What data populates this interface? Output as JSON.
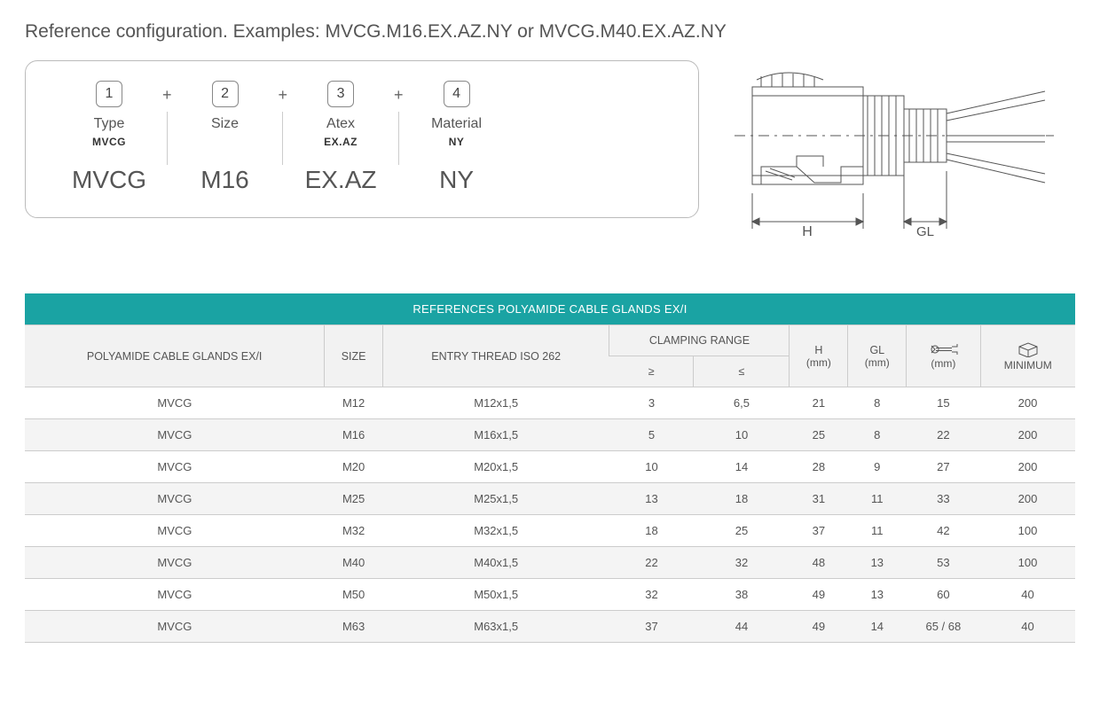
{
  "intro": "Reference configuration. Examples: MVCG.M16.EX.AZ.NY or MVCG.M40.EX.AZ.NY",
  "config": {
    "fields": [
      {
        "num": "1",
        "label": "Type",
        "bold": "MVCG",
        "value": "MVCG"
      },
      {
        "num": "2",
        "label": "Size",
        "bold": "",
        "value": "M16"
      },
      {
        "num": "3",
        "label": "Atex",
        "bold": "EX.AZ",
        "value": "EX.AZ"
      },
      {
        "num": "4",
        "label": "Material",
        "bold": "NY",
        "value": "NY"
      }
    ],
    "separator": "+"
  },
  "diagram": {
    "labels": {
      "H": "H",
      "GL": "GL"
    }
  },
  "table": {
    "title": "REFERENCES POLYAMIDE CABLE GLANDS EX/I",
    "header_bg": "#1aa3a3",
    "columns": {
      "name": "POLYAMIDE CABLE GLANDS EX/I",
      "size": "SIZE",
      "thread": "ENTRY THREAD ISO 262",
      "clamp": "CLAMPING RANGE",
      "clamp_min": "≥",
      "clamp_max": "≤",
      "H": "H",
      "H_unit": "(mm)",
      "GL": "GL",
      "GL_unit": "(mm)",
      "wrench_unit": "(mm)",
      "minimum": "MINIMUM"
    },
    "rows": [
      {
        "name": "MVCG",
        "size": "M12",
        "thread": "M12x1,5",
        "min": "3",
        "max": "6,5",
        "H": "21",
        "GL": "8",
        "wrench": "15",
        "minimum": "200"
      },
      {
        "name": "MVCG",
        "size": "M16",
        "thread": "M16x1,5",
        "min": "5",
        "max": "10",
        "H": "25",
        "GL": "8",
        "wrench": "22",
        "minimum": "200"
      },
      {
        "name": "MVCG",
        "size": "M20",
        "thread": "M20x1,5",
        "min": "10",
        "max": "14",
        "H": "28",
        "GL": "9",
        "wrench": "27",
        "minimum": "200"
      },
      {
        "name": "MVCG",
        "size": "M25",
        "thread": "M25x1,5",
        "min": "13",
        "max": "18",
        "H": "31",
        "GL": "11",
        "wrench": "33",
        "minimum": "200"
      },
      {
        "name": "MVCG",
        "size": "M32",
        "thread": "M32x1,5",
        "min": "18",
        "max": "25",
        "H": "37",
        "GL": "11",
        "wrench": "42",
        "minimum": "100"
      },
      {
        "name": "MVCG",
        "size": "M40",
        "thread": "M40x1,5",
        "min": "22",
        "max": "32",
        "H": "48",
        "GL": "13",
        "wrench": "53",
        "minimum": "100"
      },
      {
        "name": "MVCG",
        "size": "M50",
        "thread": "M50x1,5",
        "min": "32",
        "max": "38",
        "H": "49",
        "GL": "13",
        "wrench": "60",
        "minimum": "40"
      },
      {
        "name": "MVCG",
        "size": "M63",
        "thread": "M63x1,5",
        "min": "37",
        "max": "44",
        "H": "49",
        "GL": "14",
        "wrench": "65 / 68",
        "minimum": "40"
      }
    ]
  }
}
